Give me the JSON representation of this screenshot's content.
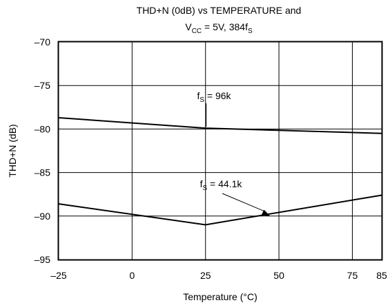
{
  "chart_data": {
    "type": "line",
    "title_line1": "THD+N (0dB) vs TEMPERATURE and",
    "title_line2": {
      "prefix": "V",
      "prefix_sub": "CC",
      "middle": " = 5V, 384f",
      "suffix_sub": "S"
    },
    "xlabel": "Temperature (°C)",
    "ylabel": "THD+N (dB)",
    "xlim": [
      -25,
      85
    ],
    "ylim": [
      -95,
      -70
    ],
    "xticks": [
      -25,
      0,
      25,
      50,
      75,
      85
    ],
    "xtick_labels": [
      "–25",
      "0",
      "25",
      "50",
      "75",
      "85"
    ],
    "yticks": [
      -70,
      -75,
      -80,
      -85,
      -90,
      -95
    ],
    "ytick_labels": [
      "–70",
      "–75",
      "–80",
      "–85",
      "–90",
      "–95"
    ],
    "grid": true,
    "legend": "none",
    "series": [
      {
        "name": "fS = 96k",
        "label_main": "f",
        "label_sub": "S",
        "label_rest": " = 96k",
        "x": [
          -25,
          25,
          85
        ],
        "y": [
          -78.7,
          -79.9,
          -80.5
        ]
      },
      {
        "name": "fS = 44.1k",
        "label_main": "f",
        "label_sub": "S",
        "label_rest": " = 44.1k",
        "x": [
          -25,
          25,
          85
        ],
        "y": [
          -88.6,
          -91.0,
          -87.6
        ]
      }
    ]
  }
}
